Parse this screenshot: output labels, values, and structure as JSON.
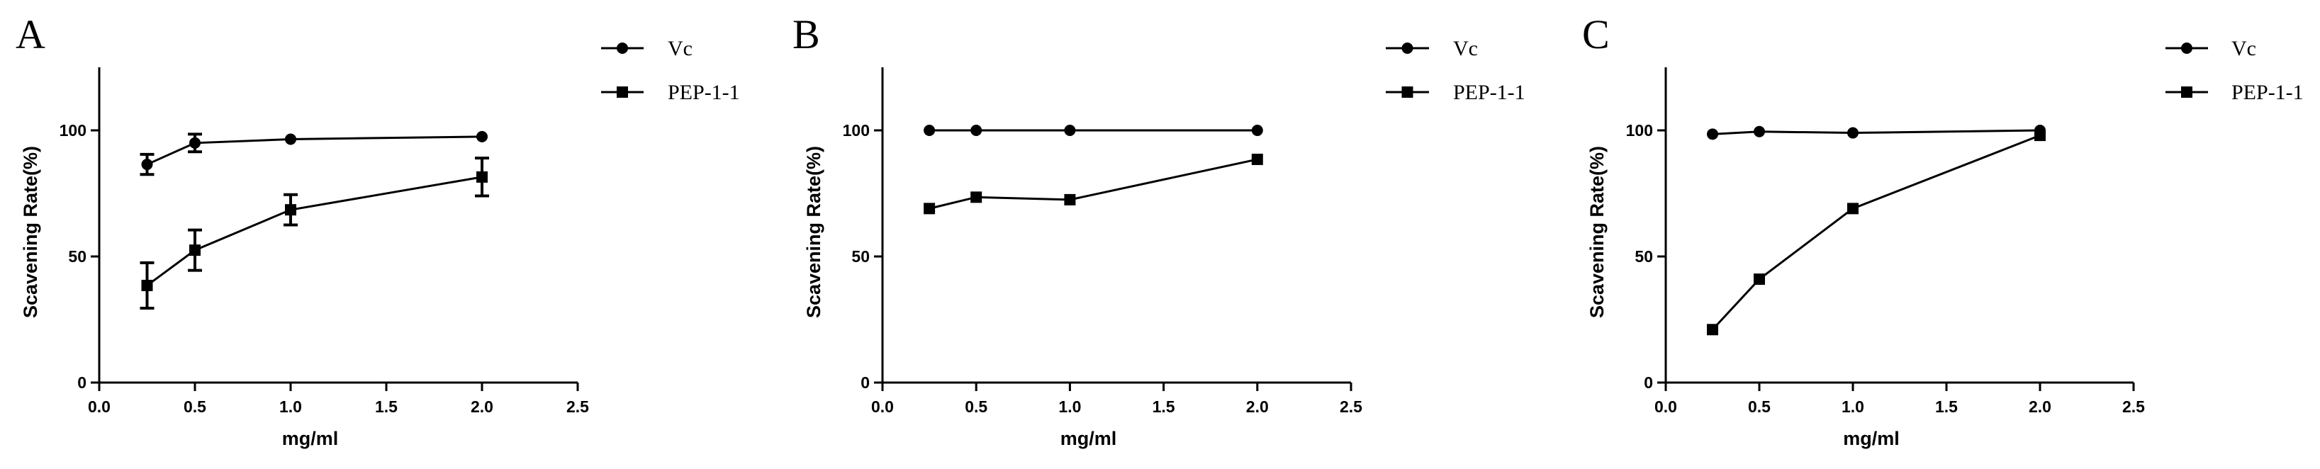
{
  "figure": {
    "colors": {
      "ink": "#000000",
      "background": "#ffffff"
    }
  },
  "chart_data": [
    {
      "panel_label": "A",
      "type": "line",
      "title": "",
      "xlabel": "mg/ml",
      "ylabel": "Scavening Rate(%)",
      "xlim": [
        0.0,
        2.5
      ],
      "ylim": [
        0,
        125
      ],
      "xticks": [
        "0.0",
        "0.5",
        "1.0",
        "1.5",
        "2.0",
        "2.5"
      ],
      "yticks": [
        "0",
        "50",
        "100"
      ],
      "x": [
        0.25,
        0.5,
        1.0,
        2.0
      ],
      "series": [
        {
          "name": "Vc",
          "marker": "circle",
          "values": [
            86.5,
            95,
            96.5,
            97.5
          ],
          "errors": [
            4,
            3.5,
            0,
            0
          ]
        },
        {
          "name": "PEP-1-1",
          "marker": "square",
          "values": [
            38.5,
            52.5,
            68.5,
            81.5
          ],
          "errors": [
            9,
            8,
            6,
            7.5
          ]
        }
      ],
      "legend": "right"
    },
    {
      "panel_label": "B",
      "type": "line",
      "title": "",
      "xlabel": "mg/ml",
      "ylabel": "Scavening Rate(%)",
      "xlim": [
        0.0,
        2.5
      ],
      "ylim": [
        0,
        125
      ],
      "xticks": [
        "0.0",
        "0.5",
        "1.0",
        "1.5",
        "2.0",
        "2.5"
      ],
      "yticks": [
        "0",
        "50",
        "100"
      ],
      "x": [
        0.25,
        0.5,
        1.0,
        2.0
      ],
      "series": [
        {
          "name": "Vc",
          "marker": "circle",
          "values": [
            100,
            100,
            100,
            100
          ],
          "errors": [
            0,
            0,
            0,
            0
          ]
        },
        {
          "name": "PEP-1-1",
          "marker": "square",
          "values": [
            69,
            73.5,
            72.5,
            88.5
          ],
          "errors": [
            0,
            0,
            0,
            0
          ]
        }
      ],
      "legend": "right"
    },
    {
      "panel_label": "C",
      "type": "line",
      "title": "",
      "xlabel": "mg/ml",
      "ylabel": "Scavening Rate(%)",
      "xlim": [
        0.0,
        2.5
      ],
      "ylim": [
        0,
        125
      ],
      "xticks": [
        "0.0",
        "0.5",
        "1.0",
        "1.5",
        "2.0",
        "2.5"
      ],
      "yticks": [
        "0",
        "50",
        "100"
      ],
      "x": [
        0.25,
        0.5,
        1.0,
        2.0
      ],
      "series": [
        {
          "name": "Vc",
          "marker": "circle",
          "values": [
            98.5,
            99.5,
            99,
            100
          ],
          "errors": [
            0,
            0,
            0,
            0
          ]
        },
        {
          "name": "PEP-1-1",
          "marker": "square",
          "values": [
            21,
            41,
            69,
            98
          ],
          "errors": [
            0,
            0,
            0,
            0
          ]
        }
      ],
      "legend": "right"
    }
  ]
}
